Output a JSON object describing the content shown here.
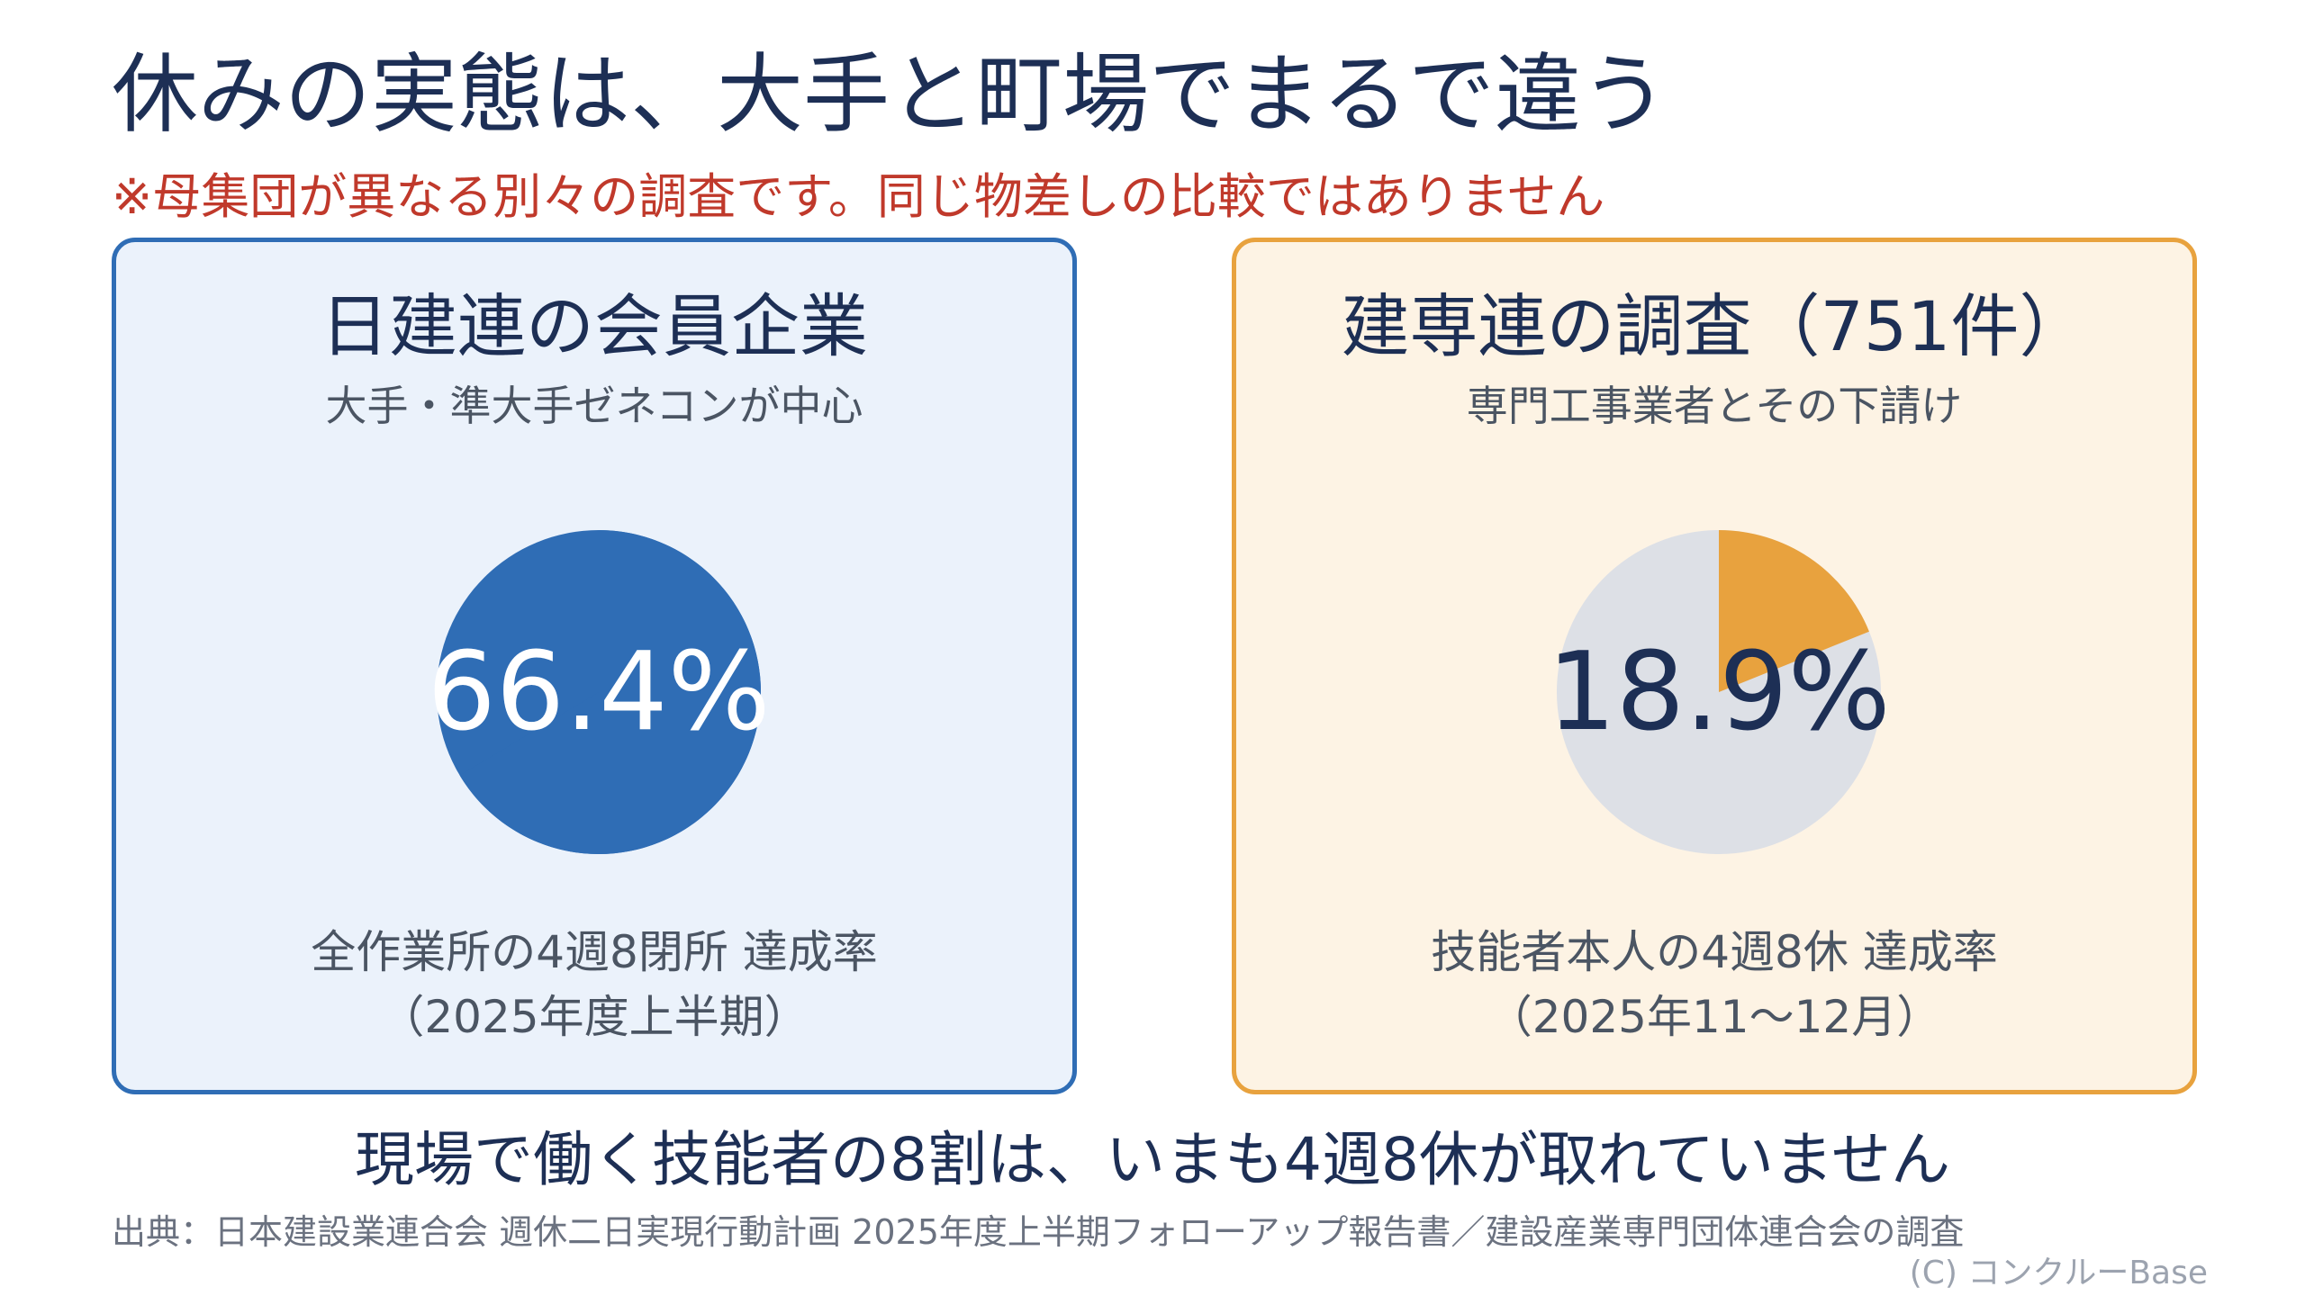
{
  "title": "休みの実態は、大手と町場でまるで違う",
  "note": "※母集団が異なる別々の調査です。同じ物差しの比較ではありません",
  "colors": {
    "left_accent": "#2f6db5",
    "left_bg": "#ebf2fb",
    "right_accent": "#e8a23e",
    "right_bg": "#fdf3e4",
    "pie_remainder": "#dde0e6",
    "text_dark": "#1d2f55"
  },
  "panels": [
    {
      "title": "日建連の会員企業",
      "subtitle": "大手・準大手ゼネコンが中心",
      "value_label": "66.4%",
      "caption_line1": "全作業所の4週8閉所 達成率",
      "caption_line2": "（2025年度上半期）"
    },
    {
      "title": "建専連の調査（751件）",
      "subtitle": "専門工事業者とその下請け",
      "value_label": "18.9%",
      "caption_line1": "技能者本人の4週8休 達成率",
      "caption_line2": "（2025年11〜12月）"
    }
  ],
  "chart_data": [
    {
      "type": "pie",
      "title": "日建連の会員企業",
      "categories": [
        "達成"
      ],
      "values": [
        66.4
      ],
      "unit": "%"
    },
    {
      "type": "pie",
      "title": "建専連の調査（751件）",
      "categories": [
        "達成"
      ],
      "values": [
        18.9
      ],
      "unit": "%"
    }
  ],
  "conclusion": "現場で働く技能者の8割は、いまも4週8休が取れていません",
  "source": "出典：日本建設業連合会 週休二日実現行動計画 2025年度上半期フォローアップ報告書／建設産業専門団体連合会の調査",
  "credit": "(C) コンクルーBase"
}
